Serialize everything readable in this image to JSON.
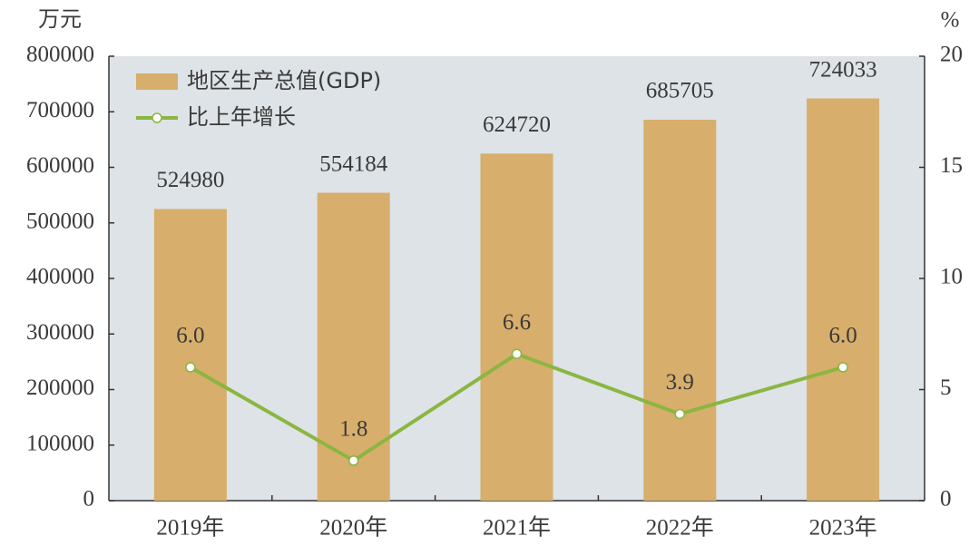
{
  "chart_data": {
    "type": "bar",
    "y_label": "万元",
    "y2_label": "%",
    "categories": [
      "2019年",
      "2020年",
      "2021年",
      "2022年",
      "2023年"
    ],
    "series": [
      {
        "name": "地区生产总值(GDP)",
        "type": "bar",
        "color": "#d7ae6b",
        "values": [
          524980,
          554184,
          624720,
          685705,
          724033
        ]
      },
      {
        "name": "比上年增长",
        "type": "line",
        "axis": "y2",
        "color": "#8ab641",
        "values": [
          6.0,
          1.8,
          6.6,
          3.9,
          6.0
        ],
        "value_labels": [
          "6.0",
          "1.8",
          "6.6",
          "3.9",
          "6.0"
        ]
      }
    ],
    "ylim": [
      0,
      800000
    ],
    "yticks": [
      0,
      100000,
      200000,
      300000,
      400000,
      500000,
      600000,
      700000,
      800000
    ],
    "y2lim": [
      0,
      20
    ],
    "y2ticks": [
      0,
      5,
      10,
      15,
      20
    ],
    "plot_background": "#dde3e6"
  }
}
